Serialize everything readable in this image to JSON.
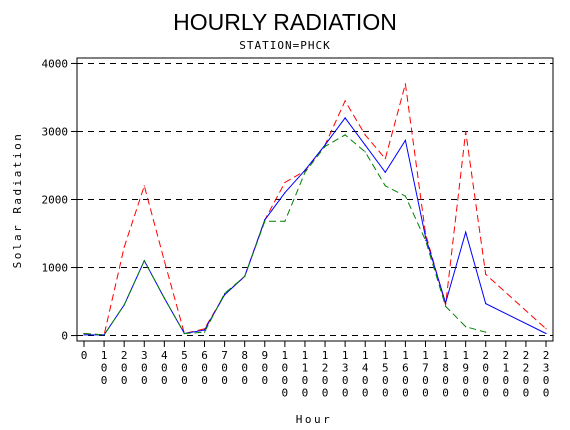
{
  "chart_data": {
    "type": "line",
    "title": "HOURLY RADIATION",
    "subtitle": "STATION=PHCK",
    "xlabel": "Hour",
    "ylabel": "Solar Radiation",
    "x_tick_labels": [
      "0",
      "100",
      "200",
      "300",
      "400",
      "500",
      "600",
      "700",
      "800",
      "900",
      "1000",
      "1100",
      "1200",
      "1300",
      "1400",
      "1500",
      "1600",
      "1700",
      "1800",
      "1900",
      "2000",
      "2100",
      "2200",
      "2300"
    ],
    "y_ticks": [
      0,
      1000,
      2000,
      3000,
      4000
    ],
    "y_tick_labels": [
      "0",
      "1000",
      "2000",
      "3000",
      "4000"
    ],
    "ylim": [
      -80,
      4080
    ],
    "xlim": [
      0,
      2300
    ],
    "grid": "horizontal dashed",
    "colors": {
      "red": "#ff0000",
      "blue": "#0000ff",
      "green": "#008000"
    },
    "series": [
      {
        "color": "#ff0000",
        "dash": "dashed",
        "x": [
          0,
          100,
          200,
          300,
          400,
          500,
          600,
          700,
          800,
          900,
          1000,
          1100,
          1200,
          1300,
          1400,
          1500,
          1600,
          1700,
          1800,
          1900,
          2000,
          2300
        ],
        "y": [
          30,
          10,
          1300,
          2200,
          1100,
          30,
          100,
          600,
          870,
          1700,
          2250,
          2420,
          2800,
          3450,
          2950,
          2600,
          3700,
          1500,
          450,
          3000,
          900,
          100
        ]
      },
      {
        "color": "#0000ff",
        "dash": "solid",
        "x": [
          0,
          100,
          200,
          300,
          400,
          500,
          600,
          700,
          800,
          900,
          1000,
          1100,
          1200,
          1300,
          1400,
          1500,
          1600,
          1700,
          1800,
          1900,
          2000,
          2300
        ],
        "y": [
          10,
          10,
          450,
          1100,
          550,
          30,
          80,
          600,
          870,
          1700,
          2100,
          2430,
          2800,
          3200,
          2800,
          2400,
          2870,
          1450,
          480,
          1520,
          470,
          30
        ]
      },
      {
        "color": "#008000",
        "dash": "dashed",
        "x": [
          0,
          100,
          200,
          300,
          400,
          500,
          600,
          700,
          800,
          900,
          1000,
          1100,
          1200,
          1300,
          1400,
          1500,
          1600,
          1700,
          1800,
          1900,
          2000
        ],
        "y": [
          30,
          10,
          450,
          1100,
          550,
          30,
          50,
          620,
          870,
          1680,
          1680,
          2400,
          2780,
          2950,
          2700,
          2200,
          2050,
          1400,
          430,
          130,
          50
        ]
      }
    ]
  }
}
